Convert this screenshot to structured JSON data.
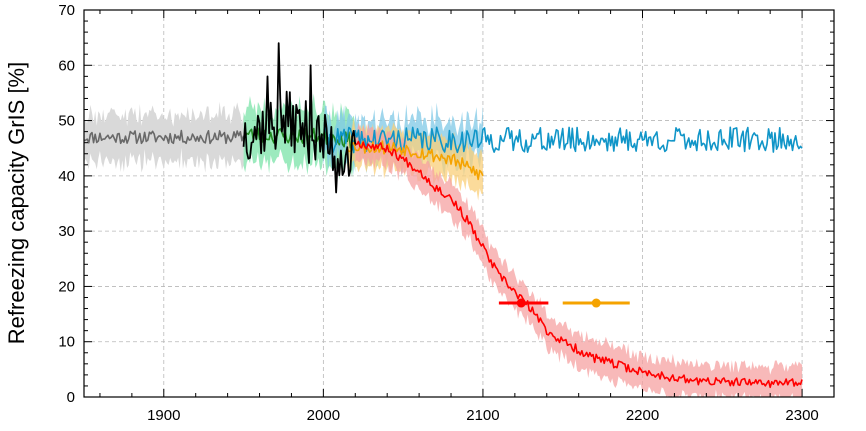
{
  "chart_data": {
    "type": "line",
    "title": "",
    "xlabel": "",
    "ylabel": "Refreezing capacity GrIS  [%]",
    "xlim": [
      1850,
      2320
    ],
    "ylim": [
      0,
      70
    ],
    "xticks": [
      1900,
      2000,
      2100,
      2200,
      2300
    ],
    "xtick_labels": [
      "1900",
      "2000",
      "2100",
      "2200",
      "2300"
    ],
    "yticks": [
      0,
      10,
      20,
      30,
      40,
      50,
      60,
      70
    ],
    "ytick_labels": [
      "0",
      "10",
      "20",
      "30",
      "40",
      "50",
      "60",
      "70"
    ],
    "grid": true,
    "legend": "none",
    "colors": {
      "reanalysis_line": "#696969",
      "reanalysis_band": "#d9d9d9",
      "historical_line": "#228b22",
      "historical_band": "#7be3a8",
      "observed_line": "#000000",
      "control_line": "#1095c8",
      "control_band": "#7fc8e6",
      "scenario_high_line": "#ff0000",
      "scenario_high_band": "#f6a1a1",
      "scenario_mid_line": "#f5a300",
      "scenario_mid_band": "#f9cf7a"
    },
    "series": [
      {
        "key": "reanalysis",
        "x_range": [
          1850,
          1950
        ],
        "mean": 47,
        "noise": 1.2,
        "band_halfwidth": 4.2,
        "knots": [
          [
            1850,
            47
          ],
          [
            1950,
            47
          ]
        ]
      },
      {
        "key": "historical",
        "x_range": [
          1950,
          2020
        ],
        "mean": 47.5,
        "noise": 1.5,
        "band_halfwidth": 5,
        "knots": [
          [
            1950,
            47.5
          ],
          [
            2010,
            47
          ],
          [
            2020,
            46
          ]
        ]
      },
      {
        "key": "observed",
        "x_range": [
          1950,
          2020
        ],
        "noise": 5.5,
        "knots": [
          [
            1950,
            48
          ],
          [
            1980,
            50
          ],
          [
            2000,
            46
          ],
          [
            2020,
            43
          ]
        ],
        "peaks": [
          [
            1972,
            64
          ],
          [
            1965,
            58
          ],
          [
            1992,
            60
          ],
          [
            2008,
            37
          ]
        ]
      },
      {
        "key": "control",
        "x_range": [
          2000,
          2300
        ],
        "mean": 46.5,
        "noise": 2.3,
        "band_halfwidth": 3.5,
        "band_x_range": [
          2000,
          2100
        ],
        "knots": [
          [
            2000,
            46.5
          ],
          [
            2300,
            46.5
          ]
        ]
      },
      {
        "key": "scenario_mid",
        "x_range": [
          2015,
          2100
        ],
        "noise": 1.3,
        "band_halfwidth": 3.5,
        "knots": [
          [
            2015,
            45.5
          ],
          [
            2050,
            45
          ],
          [
            2080,
            43
          ],
          [
            2100,
            40
          ]
        ]
      },
      {
        "key": "scenario_high",
        "x_range": [
          2020,
          2300
        ],
        "noise": 0.8,
        "band_halfwidth": 3,
        "knots": [
          [
            2020,
            46
          ],
          [
            2040,
            45
          ],
          [
            2060,
            41
          ],
          [
            2070,
            38
          ],
          [
            2080,
            36
          ],
          [
            2090,
            32
          ],
          [
            2100,
            27
          ],
          [
            2110,
            22
          ],
          [
            2120,
            19
          ],
          [
            2130,
            16
          ],
          [
            2140,
            12
          ],
          [
            2150,
            10
          ],
          [
            2170,
            7
          ],
          [
            2200,
            4.5
          ],
          [
            2230,
            3
          ],
          [
            2260,
            2.6
          ],
          [
            2300,
            2.5
          ]
        ]
      }
    ],
    "markers": [
      {
        "key": "scenario_high",
        "x": 2124,
        "y": 17,
        "xerr": [
          2110,
          2141
        ]
      },
      {
        "key": "scenario_mid",
        "x": 2171,
        "y": 17,
        "xerr": [
          2150,
          2192
        ]
      }
    ]
  }
}
